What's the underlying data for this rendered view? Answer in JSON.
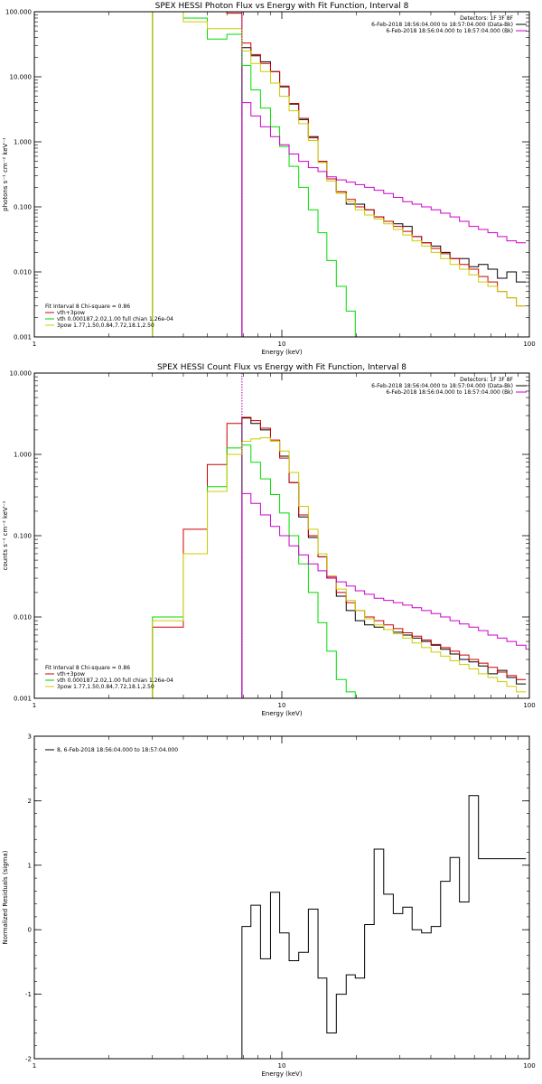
{
  "chart_data": [
    {
      "type": "line",
      "title": "SPEX HESSI Photon Flux vs Energy with Fit Function, Interval 8",
      "xlabel": "Energy (keV)",
      "ylabel": "photons s⁻¹ cm⁻² keV⁻¹",
      "xscale": "log",
      "yscale": "log",
      "xlim": [
        1,
        100
      ],
      "ylim": [
        0.001,
        100
      ],
      "xticks": [
        {
          "value": 1,
          "label": "1"
        },
        {
          "value": 10,
          "label": "10"
        },
        {
          "value": 100,
          "label": "100"
        }
      ],
      "yticks": [
        {
          "value": 0.001,
          "label": "0.001"
        },
        {
          "value": 0.01,
          "label": "0.010"
        },
        {
          "value": 0.1,
          "label": "0.100"
        },
        {
          "value": 1,
          "label": "1.000"
        },
        {
          "value": 10,
          "label": "10.000"
        },
        {
          "value": 100,
          "label": "100.000"
        }
      ],
      "vline": {
        "x": 6.9,
        "color": "#aa00aa"
      },
      "info_lines": [
        {
          "text": "Detectors: 1F 3F 8F",
          "color": "#000000"
        },
        {
          "text": "6-Feb-2018 18:56:04.000 to 18:57:04.000 (Data-Bk)",
          "color": "#000000"
        },
        {
          "text": "6-Feb-2018 18:56:04.000 to 18:57:04.000 (Bk)",
          "color": "#cc00cc"
        }
      ],
      "legend_title": "Fit Interval 8   Chi-square = 0.86",
      "legend": [
        {
          "text": "vth+3pow",
          "color": "#cc0000"
        },
        {
          "text": "vth 0.000187,2.02,1.00  full chian 1.26e-04",
          "color": "#00cc00"
        },
        {
          "text": "3pow 1.77,1.50,0.84,7.72,18.1,2.50",
          "color": "#cccc00"
        }
      ],
      "series": [
        {
          "color": "#000000",
          "edges": [
            6.9,
            7.5,
            8.2,
            9.0,
            9.8,
            10.7,
            11.7,
            12.8,
            14.0,
            15.2,
            16.6,
            18.2,
            19.8,
            21.6,
            23.6,
            25.8,
            28.2,
            30.8,
            33.6,
            36.7,
            40.1,
            43.8,
            47.8,
            52.2,
            57.0,
            62.3,
            68.0,
            74.3,
            81.1,
            88.6,
            96.8
          ],
          "values": [
            28,
            21,
            17,
            12,
            7,
            3.8,
            2.2,
            1.2,
            0.5,
            0.27,
            0.17,
            0.11,
            0.11,
            0.09,
            0.07,
            0.06,
            0.055,
            0.05,
            0.035,
            0.028,
            0.025,
            0.02,
            0.016,
            0.016,
            0.012,
            0.013,
            0.011,
            0.008,
            0.01,
            0.007
          ]
        },
        {
          "color": "#cc0000",
          "edges": [
            3.0,
            4.0,
            5.0,
            6.0,
            6.9,
            7.5,
            8.2,
            9.0,
            9.8,
            10.7,
            11.7,
            12.8,
            14.0,
            15.2,
            16.6,
            18.2,
            19.8,
            21.6,
            23.6,
            25.8,
            28.2,
            30.8,
            33.6,
            36.7,
            40.1,
            43.8,
            47.8,
            52.2,
            57.0,
            62.3,
            68.0,
            74.3,
            81.1,
            88.6,
            96.8
          ],
          "values": [
            100,
            100,
            100,
            95,
            33,
            22,
            16,
            12,
            7.2,
            3.9,
            2.3,
            1.15,
            0.5,
            0.27,
            0.17,
            0.13,
            0.1,
            0.09,
            0.07,
            0.06,
            0.05,
            0.042,
            0.035,
            0.028,
            0.023,
            0.019,
            0.016,
            0.013,
            0.011,
            0.0085,
            0.007,
            0.005,
            0.004,
            0.003
          ]
        },
        {
          "color": "#00dd00",
          "edges": [
            3.0,
            4.0,
            5.0,
            6.0,
            6.9,
            7.5,
            8.2,
            9.0,
            9.8,
            10.7,
            11.7,
            12.8,
            14.0,
            15.2,
            16.6,
            18.2,
            19.8,
            21.6
          ],
          "values": [
            100,
            80,
            38,
            45,
            15,
            6.3,
            3.3,
            1.7,
            0.85,
            0.42,
            0.2,
            0.09,
            0.04,
            0.015,
            0.006,
            0.0025,
            0.001
          ]
        },
        {
          "color": "#cccc00",
          "edges": [
            3.0,
            4.0,
            5.0,
            6.0,
            6.9,
            7.5,
            8.2,
            9.0,
            9.8,
            10.7,
            11.7,
            12.8,
            14.0,
            15.2,
            16.6,
            18.2,
            19.8,
            21.6,
            23.6,
            25.8,
            28.2,
            30.8,
            33.6,
            36.7,
            40.1,
            43.8,
            47.8,
            52.2,
            57.0,
            62.3,
            68.0,
            74.3,
            81.1,
            88.6,
            96.8
          ],
          "values": [
            100,
            70,
            55,
            55,
            25,
            16,
            12,
            8,
            5,
            3,
            1.9,
            1.05,
            0.48,
            0.25,
            0.16,
            0.12,
            0.09,
            0.075,
            0.065,
            0.055,
            0.045,
            0.037,
            0.03,
            0.025,
            0.02,
            0.016,
            0.013,
            0.011,
            0.009,
            0.007,
            0.006,
            0.005,
            0.004,
            0.003
          ]
        },
        {
          "color": "#cc00cc",
          "edges": [
            6.9,
            7.5,
            8.2,
            9.0,
            9.8,
            10.7,
            11.7,
            12.8,
            14.0,
            15.2,
            16.6,
            18.2,
            19.8,
            21.6,
            23.6,
            25.8,
            28.2,
            30.8,
            33.6,
            36.7,
            40.1,
            43.8,
            47.8,
            52.2,
            57.0,
            62.3,
            68.0,
            74.3,
            81.1,
            88.6,
            96.8
          ],
          "values": [
            4.0,
            2.5,
            1.7,
            1.2,
            0.9,
            0.65,
            0.5,
            0.4,
            0.35,
            0.29,
            0.26,
            0.24,
            0.22,
            0.2,
            0.18,
            0.16,
            0.14,
            0.12,
            0.11,
            0.1,
            0.09,
            0.08,
            0.07,
            0.06,
            0.05,
            0.045,
            0.04,
            0.035,
            0.03,
            0.028
          ]
        }
      ]
    },
    {
      "type": "line",
      "title": "SPEX HESSI Count Flux vs Energy with Fit Function, Interval 8",
      "xlabel": "Energy (keV)",
      "ylabel": "counts s⁻¹ cm⁻² keV⁻¹",
      "xscale": "log",
      "yscale": "log",
      "xlim": [
        1,
        100
      ],
      "ylim": [
        0.001,
        10
      ],
      "xticks": [
        {
          "value": 1,
          "label": "1"
        },
        {
          "value": 10,
          "label": "10"
        },
        {
          "value": 100,
          "label": "100"
        }
      ],
      "yticks": [
        {
          "value": 0.001,
          "label": "0.001"
        },
        {
          "value": 0.01,
          "label": "0.010"
        },
        {
          "value": 0.1,
          "label": "0.100"
        },
        {
          "value": 1,
          "label": "1.000"
        },
        {
          "value": 10,
          "label": "10.000"
        }
      ],
      "vline": {
        "x": 6.9,
        "color": "#aa00aa"
      },
      "info_lines": [
        {
          "text": "Detectors: 1F 3F 8F",
          "color": "#000000"
        },
        {
          "text": "6-Feb-2018 18:56:04.000 to 18:57:04.000 (Data-Bk)",
          "color": "#000000"
        },
        {
          "text": "6-Feb-2018 18:56:04.000 to 18:57:04.000 (Bk)",
          "color": "#cc00cc"
        }
      ],
      "legend_title": "Fit Interval 8   Chi-square = 0.86",
      "legend": [
        {
          "text": "vth+3pow",
          "color": "#cc0000"
        },
        {
          "text": "vth 0.000187,2.02,1.00  full chian 1.26e-04",
          "color": "#00cc00"
        },
        {
          "text": "3pow 1.77,1.50,0.84,7.72,18.1,2.50",
          "color": "#cccc00"
        }
      ],
      "series": [
        {
          "color": "#000000",
          "edges": [
            6.9,
            7.5,
            8.2,
            9.0,
            9.8,
            10.7,
            11.7,
            12.8,
            14.0,
            15.2,
            16.6,
            18.2,
            19.8,
            21.6,
            23.6,
            25.8,
            28.2,
            30.8,
            33.6,
            36.7,
            40.1,
            43.8,
            47.8,
            52.2,
            57.0,
            62.3,
            68.0,
            74.3,
            81.1,
            88.6,
            96.8
          ],
          "values": [
            2.8,
            2.4,
            2.0,
            1.45,
            0.95,
            0.45,
            0.17,
            0.095,
            0.055,
            0.03,
            0.018,
            0.012,
            0.009,
            0.008,
            0.0075,
            0.007,
            0.0065,
            0.006,
            0.0055,
            0.005,
            0.0045,
            0.004,
            0.0035,
            0.003,
            0.0028,
            0.0025,
            0.002,
            0.0022,
            0.0018,
            0.0015
          ]
        },
        {
          "color": "#cc0000",
          "edges": [
            3.0,
            4.0,
            5.0,
            6.0,
            6.9,
            7.5,
            8.2,
            9.0,
            9.8,
            10.7,
            11.7,
            12.8,
            14.0,
            15.2,
            16.6,
            18.2,
            19.8,
            21.6,
            23.6,
            25.8,
            28.2,
            30.8,
            33.6,
            36.7,
            40.1,
            43.8,
            47.8,
            52.2,
            57.0,
            62.3,
            68.0,
            74.3,
            81.1,
            88.6,
            96.8
          ],
          "values": [
            0.0075,
            0.12,
            0.75,
            2.4,
            2.85,
            2.6,
            2.1,
            1.5,
            0.9,
            0.45,
            0.18,
            0.1,
            0.055,
            0.03,
            0.02,
            0.015,
            0.012,
            0.01,
            0.009,
            0.008,
            0.0072,
            0.0064,
            0.0058,
            0.0052,
            0.0046,
            0.0042,
            0.0038,
            0.0034,
            0.003,
            0.0027,
            0.0024,
            0.0021,
            0.0019,
            0.0017
          ]
        },
        {
          "color": "#00dd00",
          "edges": [
            3.0,
            4.0,
            5.0,
            6.0,
            6.9,
            7.5,
            8.2,
            9.0,
            9.8,
            10.7,
            11.7,
            12.8,
            14.0,
            15.2,
            16.6,
            18.2,
            19.8,
            21.6
          ],
          "values": [
            0.01,
            0.06,
            0.4,
            1.2,
            1.3,
            0.8,
            0.5,
            0.32,
            0.19,
            0.1,
            0.045,
            0.02,
            0.0085,
            0.0038,
            0.0017,
            0.0012,
            0.0008
          ]
        },
        {
          "color": "#cccc00",
          "edges": [
            3.0,
            4.0,
            5.0,
            6.0,
            6.9,
            7.5,
            8.2,
            9.0,
            9.8,
            10.7,
            11.7,
            12.8,
            14.0,
            15.2,
            16.6,
            18.2,
            19.8,
            21.6,
            23.6,
            25.8,
            28.2,
            30.8,
            33.6,
            36.7,
            40.1,
            43.8,
            47.8,
            52.2,
            57.0,
            62.3,
            68.0,
            74.3,
            81.1,
            88.6,
            96.8
          ],
          "values": [
            0.009,
            0.06,
            0.35,
            1.0,
            1.45,
            1.55,
            1.6,
            1.45,
            1.1,
            0.6,
            0.23,
            0.12,
            0.06,
            0.032,
            0.022,
            0.016,
            0.012,
            0.0095,
            0.008,
            0.007,
            0.0062,
            0.0055,
            0.0048,
            0.0042,
            0.0037,
            0.0033,
            0.0029,
            0.0026,
            0.0023,
            0.002,
            0.0018,
            0.0016,
            0.0014,
            0.0012
          ]
        },
        {
          "color": "#cc00cc",
          "edges": [
            6.9,
            7.5,
            8.2,
            9.0,
            9.8,
            10.7,
            11.7,
            12.8,
            14.0,
            15.2,
            16.6,
            18.2,
            19.8,
            21.6,
            23.6,
            25.8,
            28.2,
            30.8,
            33.6,
            36.7,
            40.1,
            43.8,
            47.8,
            52.2,
            57.0,
            62.3,
            68.0,
            74.3,
            81.1,
            88.6,
            96.8
          ],
          "values": [
            0.33,
            0.25,
            0.18,
            0.13,
            0.1,
            0.075,
            0.058,
            0.045,
            0.037,
            0.031,
            0.027,
            0.024,
            0.021,
            0.019,
            0.017,
            0.016,
            0.015,
            0.014,
            0.013,
            0.012,
            0.011,
            0.01,
            0.009,
            0.0082,
            0.0075,
            0.0068,
            0.006,
            0.0055,
            0.005,
            0.0045,
            0.004
          ]
        }
      ]
    },
    {
      "type": "line",
      "title": "",
      "xlabel": "Energy (keV)",
      "ylabel": "Normalized Residuals (sigma)",
      "xscale": "log",
      "yscale": "linear",
      "xlim": [
        1,
        100
      ],
      "ylim": [
        -2,
        3
      ],
      "xticks": [
        {
          "value": 1,
          "label": "1"
        },
        {
          "value": 10,
          "label": "10"
        },
        {
          "value": 100,
          "label": "100"
        }
      ],
      "yticks": [
        {
          "value": -2,
          "label": "-2"
        },
        {
          "value": -1,
          "label": "-1"
        },
        {
          "value": 0,
          "label": "0"
        },
        {
          "value": 1,
          "label": "1"
        },
        {
          "value": 2,
          "label": "2"
        },
        {
          "value": 3,
          "label": "3"
        }
      ],
      "legend": [
        {
          "text": "8,  6-Feb-2018 18:56:04.000 to 18:57:04.000",
          "color": "#000000"
        }
      ],
      "series": [
        {
          "color": "#000000",
          "edges": [
            6.9,
            7.5,
            8.2,
            9.0,
            9.8,
            10.7,
            11.7,
            12.8,
            14.0,
            15.2,
            16.6,
            18.2,
            19.8,
            21.6,
            23.6,
            25.8,
            28.2,
            30.8,
            33.6,
            36.7,
            40.1,
            43.8,
            47.8,
            52.2,
            57.0,
            62.3,
            68.0,
            74.3,
            81.1,
            88.6,
            96.8
          ],
          "values": [
            0.05,
            0.38,
            -0.45,
            0.58,
            -0.05,
            -0.48,
            -0.35,
            0.32,
            -0.75,
            -1.6,
            -1.0,
            -0.7,
            -0.75,
            0.08,
            1.25,
            0.55,
            0.25,
            0.35,
            0.0,
            -0.05,
            0.05,
            0.75,
            1.12,
            0.43,
            2.08,
            1.1,
            1.1,
            1.1,
            1.1,
            1.1
          ]
        }
      ]
    }
  ]
}
